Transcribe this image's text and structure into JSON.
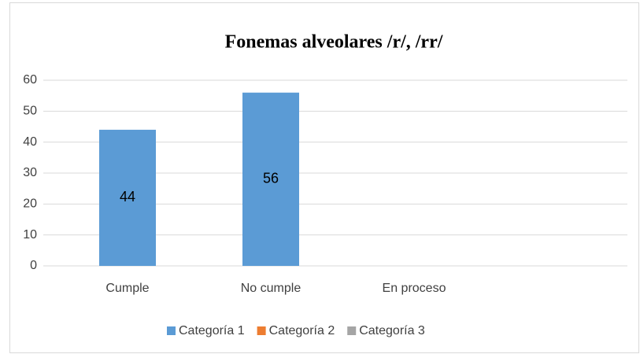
{
  "chart_data": {
    "type": "bar",
    "title": "Fonemas alveolares /r/, /rr/",
    "categories": [
      "Cumple",
      "No cumple",
      "En proceso",
      null
    ],
    "series": [
      {
        "name": "Categoría 1",
        "color": "#5b9bd5",
        "values": [
          44,
          56,
          null,
          null
        ]
      },
      {
        "name": "Categoría 2",
        "color": "#ed7d31",
        "values": [
          null,
          null,
          null,
          null
        ]
      },
      {
        "name": "Categoría 3",
        "color": "#a5a5a5",
        "values": [
          null,
          null,
          null,
          null
        ]
      }
    ],
    "ylim": [
      0,
      60
    ],
    "yticks": [
      0,
      10,
      20,
      30,
      40,
      50,
      60
    ],
    "grid": true,
    "legend": "bottom"
  }
}
